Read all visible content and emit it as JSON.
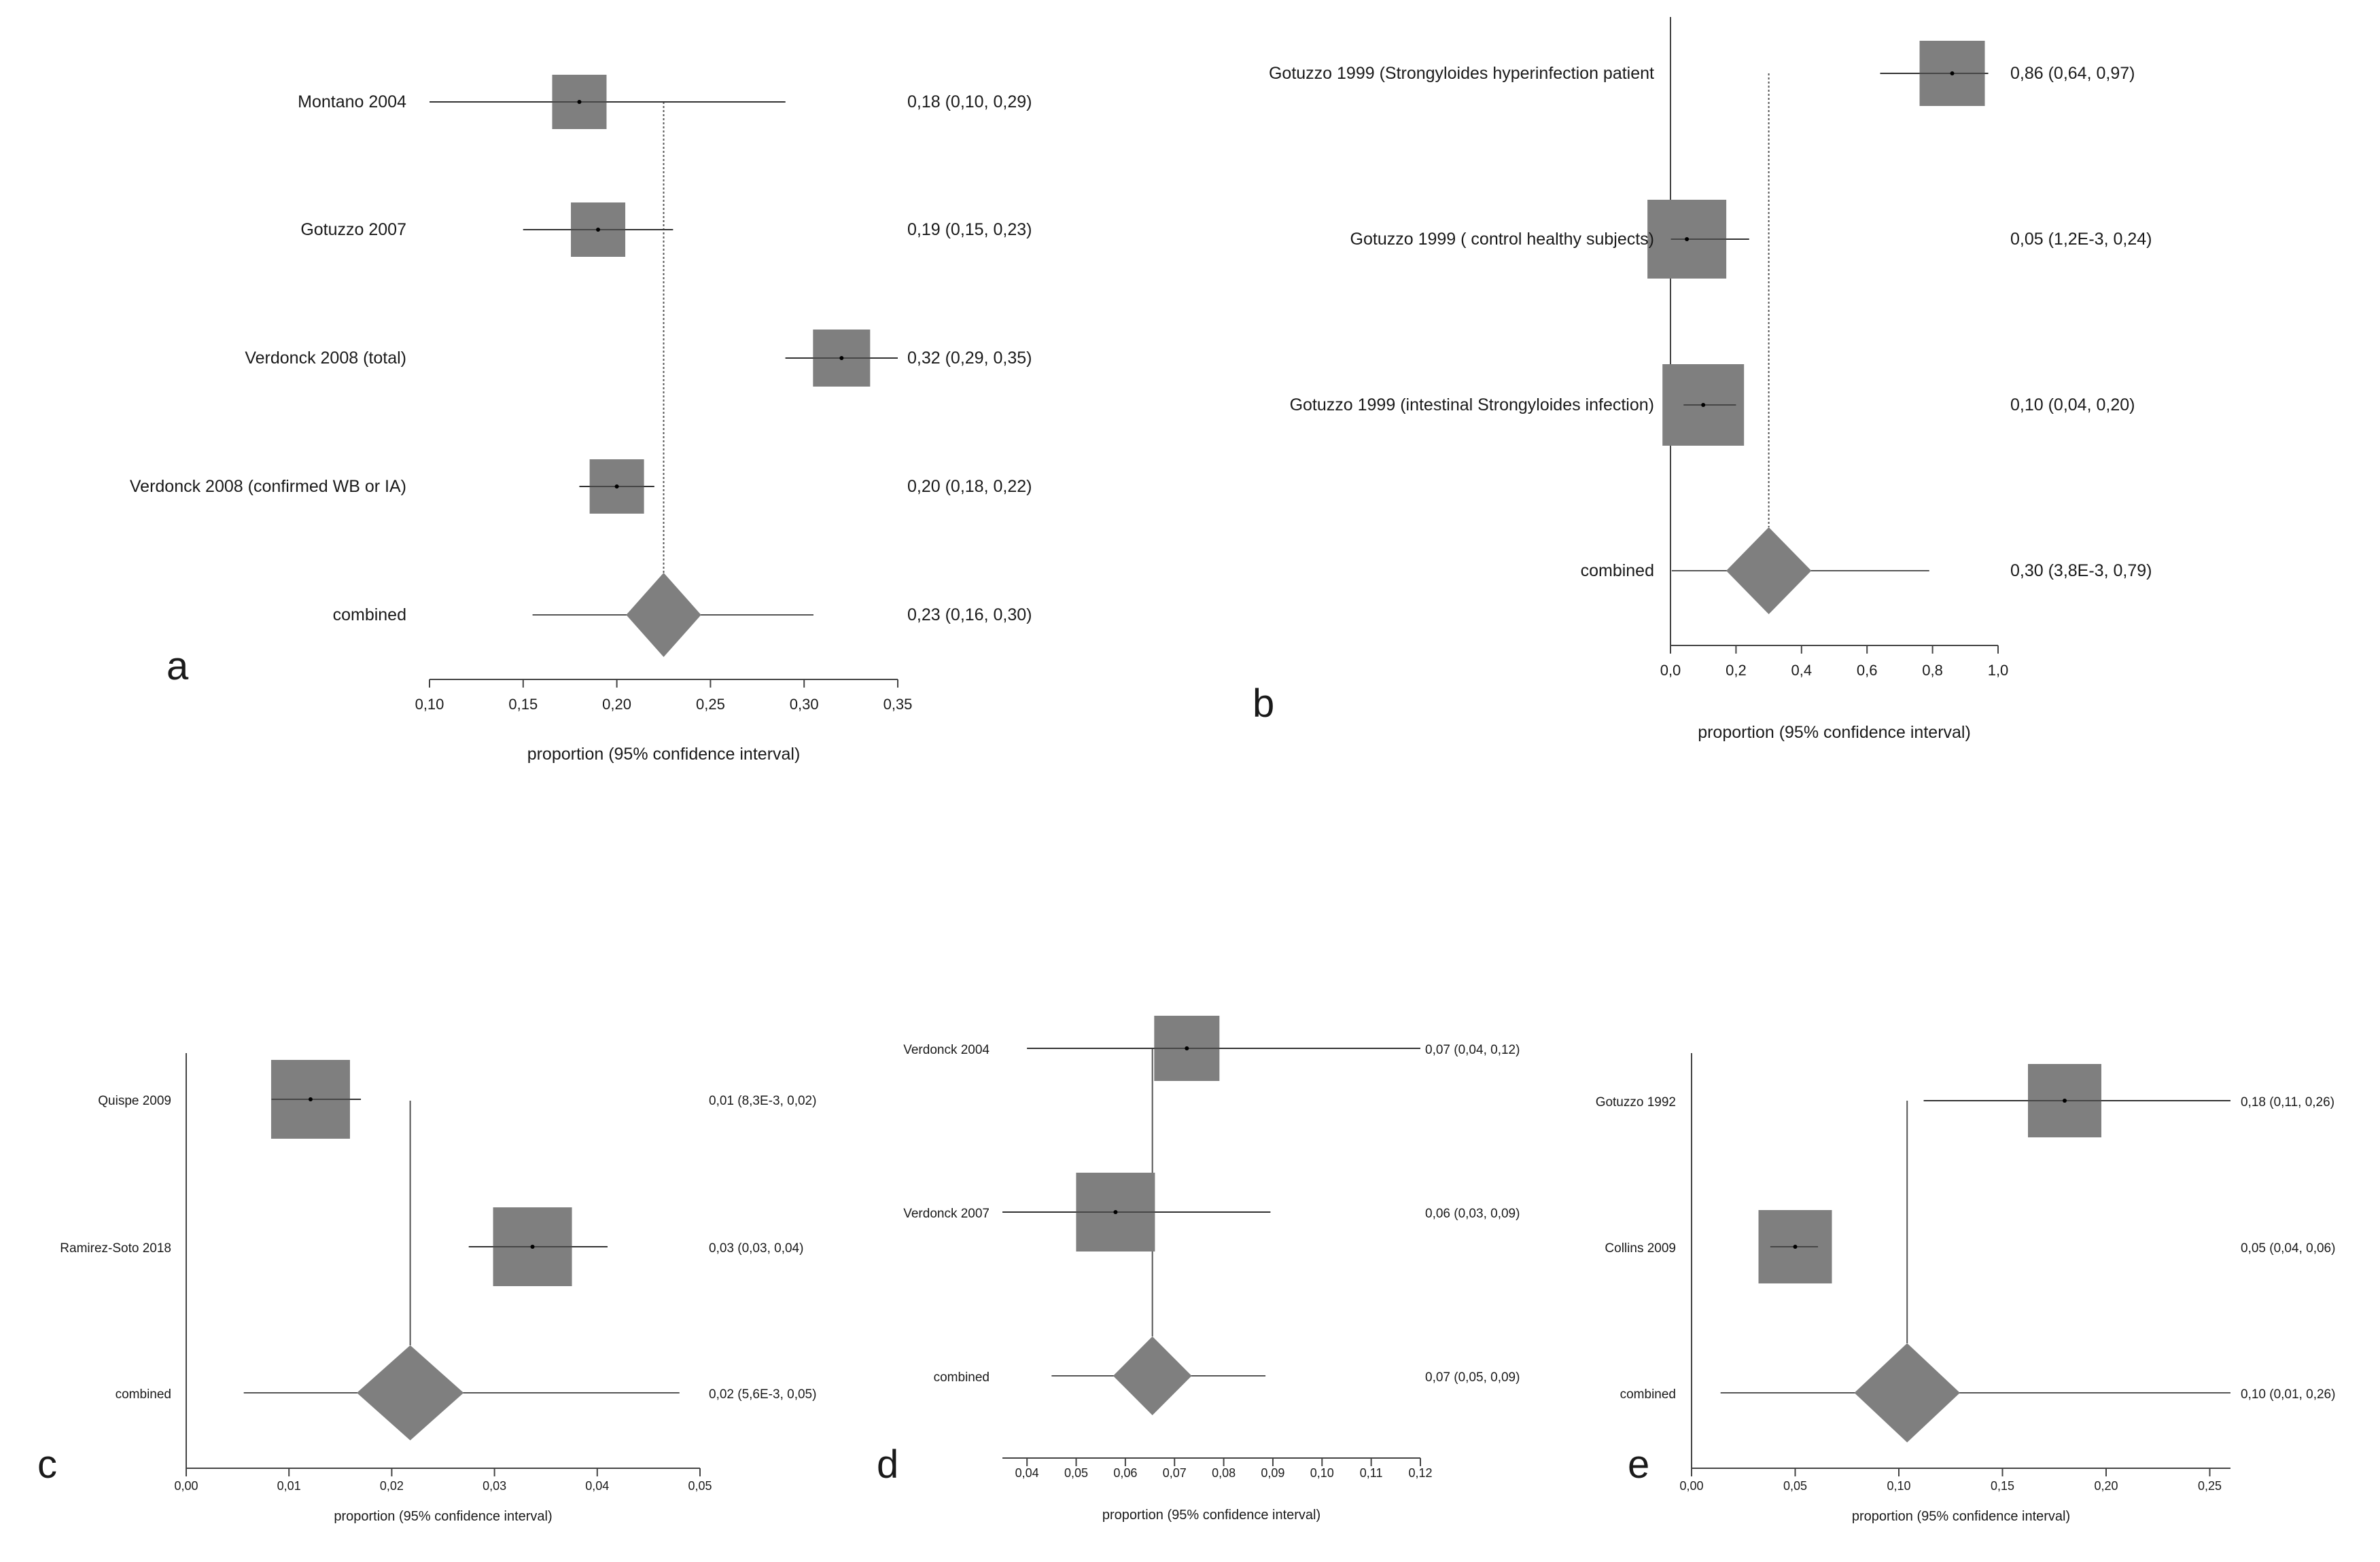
{
  "chart_data": [
    {
      "panel": "a",
      "type": "forest",
      "xlabel": "proportion (95% confidence interval)",
      "xlim": [
        0.1,
        0.35
      ],
      "ticks": [
        0.1,
        0.15,
        0.2,
        0.25,
        0.3,
        0.35
      ],
      "tick_labels": [
        "0,10",
        "0,15",
        "0,20",
        "0,25",
        "0,30",
        "0,35"
      ],
      "pooled": 0.225,
      "studies": [
        {
          "label": "Montano 2004",
          "est": 0.18,
          "lo": 0.1,
          "hi": 0.29,
          "ci_text": "0,18 (0,10, 0,29)"
        },
        {
          "label": "Gotuzzo 2007",
          "est": 0.19,
          "lo": 0.15,
          "hi": 0.23,
          "ci_text": "0,19 (0,15, 0,23)"
        },
        {
          "label": "Verdonck 2008 (total)",
          "est": 0.32,
          "lo": 0.29,
          "hi": 0.35,
          "ci_text": "0,32 (0,29, 0,35)"
        },
        {
          "label": "Verdonck 2008 (confirmed WB or IA)",
          "est": 0.2,
          "lo": 0.18,
          "hi": 0.22,
          "ci_text": "0,20 (0,18, 0,22)"
        }
      ],
      "combined": {
        "label": "combined",
        "est": 0.225,
        "lo": 0.155,
        "hi": 0.305,
        "ci_text": "0,23 (0,16, 0,30)"
      }
    },
    {
      "panel": "b",
      "type": "forest",
      "xlabel": "proportion (95% confidence interval)",
      "xlim": [
        0.0,
        1.0
      ],
      "ticks": [
        0.0,
        0.2,
        0.4,
        0.6,
        0.8,
        1.0
      ],
      "tick_labels": [
        "0,0",
        "0,2",
        "0,4",
        "0,6",
        "0,8",
        "1,0"
      ],
      "pooled": 0.3,
      "studies": [
        {
          "label": "Gotuzzo 1999 (Strongyloides hyperinfection patient",
          "est": 0.86,
          "lo": 0.64,
          "hi": 0.97,
          "ci_text": "0,86 (0,64, 0,97)"
        },
        {
          "label": "Gotuzzo 1999 ( control healthy subjects)",
          "est": 0.05,
          "lo": 0.0012,
          "hi": 0.24,
          "ci_text": "0,05 (1,2E-3, 0,24)"
        },
        {
          "label": "Gotuzzo 1999 (intestinal Strongyloides infection)",
          "est": 0.1,
          "lo": 0.04,
          "hi": 0.2,
          "ci_text": "0,10 (0,04, 0,20)"
        }
      ],
      "combined": {
        "label": "combined",
        "est": 0.3,
        "lo": 0.0038,
        "hi": 0.79,
        "ci_text": "0,30 (3,8E-3, 0,79)"
      }
    },
    {
      "panel": "c",
      "type": "forest",
      "xlabel": "proportion (95% confidence interval)",
      "xlim": [
        0.0,
        0.05
      ],
      "ticks": [
        0.0,
        0.01,
        0.02,
        0.03,
        0.04,
        0.05
      ],
      "tick_labels": [
        "0,00",
        "0,01",
        "0,02",
        "0,03",
        "0,04",
        "0,05"
      ],
      "pooled": 0.0218,
      "studies": [
        {
          "label": "Quispe 2009",
          "est": 0.0121,
          "lo": 0.0083,
          "hi": 0.017,
          "ci_text": "0,01 (8,3E-3, 0,02)"
        },
        {
          "label": "Ramirez-Soto 2018",
          "est": 0.0337,
          "lo": 0.0275,
          "hi": 0.041,
          "ci_text": "0,03 (0,03, 0,04)"
        }
      ],
      "combined": {
        "label": "combined",
        "est": 0.0218,
        "lo": 0.0056,
        "hi": 0.048,
        "ci_text": "0,02 (5,6E-3, 0,05)"
      }
    },
    {
      "panel": "d",
      "type": "forest",
      "xlabel": "proportion (95% confidence interval)",
      "xlim": [
        0.035,
        0.12
      ],
      "ticks": [
        0.04,
        0.05,
        0.06,
        0.07,
        0.08,
        0.09,
        0.1,
        0.11,
        0.12
      ],
      "tick_labels": [
        "0,04",
        "0,05",
        "0,06",
        "0,07",
        "0,08",
        "0,09",
        "0,10",
        "0,11",
        "0,12"
      ],
      "pooled": 0.0655,
      "studies": [
        {
          "label": "Verdonck 2004",
          "est": 0.0725,
          "lo": 0.04,
          "hi": 0.12,
          "ci_text": "0,07 (0,04, 0,12)"
        },
        {
          "label": "Verdonck 2007",
          "est": 0.058,
          "lo": 0.035,
          "hi": 0.0895,
          "ci_text": "0,06 (0,03, 0,09)"
        }
      ],
      "combined": {
        "label": "combined",
        "est": 0.0655,
        "lo": 0.045,
        "hi": 0.0885,
        "ci_text": "0,07 (0,05, 0,09)"
      }
    },
    {
      "panel": "e",
      "type": "forest",
      "xlabel": "proportion (95% confidence interval)",
      "xlim": [
        0.0,
        0.26
      ],
      "ticks": [
        0.0,
        0.05,
        0.1,
        0.15,
        0.2,
        0.25
      ],
      "tick_labels": [
        "0,00",
        "0,05",
        "0,10",
        "0,15",
        "0,20",
        "0,25"
      ],
      "pooled": 0.104,
      "studies": [
        {
          "label": "Gotuzzo 1992",
          "est": 0.18,
          "lo": 0.112,
          "hi": 0.26,
          "ci_text": "0,18 (0,11, 0,26)"
        },
        {
          "label": "Collins 2009",
          "est": 0.05,
          "lo": 0.038,
          "hi": 0.061,
          "ci_text": "0,05 (0,04, 0,06)"
        }
      ],
      "combined": {
        "label": "combined",
        "est": 0.104,
        "lo": 0.014,
        "hi": 0.26,
        "ci_text": "0,10 (0,01, 0,26)"
      }
    }
  ]
}
